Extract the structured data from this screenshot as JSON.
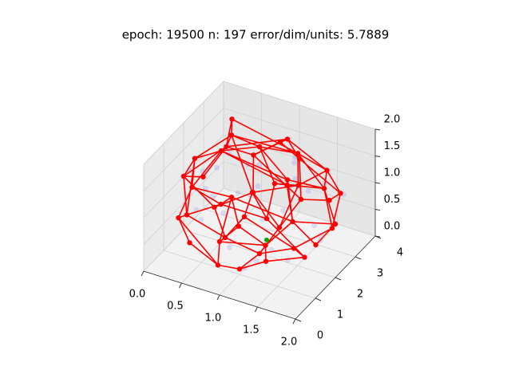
{
  "chart_data": {
    "type": "network3d",
    "title": "epoch: 19500 n: 197 error/dim/units: 5.7889",
    "xlim": [
      0,
      2
    ],
    "ylim": [
      0,
      4
    ],
    "zlim": [
      0,
      2
    ],
    "xticks": [
      {
        "value": 0,
        "label": "0.0"
      },
      0.5,
      {
        "value": 1,
        "label": "1.0"
      },
      1.5,
      {
        "value": 2,
        "label": "2.0"
      }
    ],
    "yticks": [
      0,
      1,
      2,
      3,
      4
    ],
    "zticks": [
      {
        "value": 0,
        "label": "0.0"
      },
      0.5,
      {
        "value": 1,
        "label": "1.0"
      },
      1.5,
      {
        "value": 2,
        "label": "2.0"
      }
    ],
    "grid": true,
    "samples": {
      "color": "#0000ff",
      "x": [
        0.9,
        1.3,
        0.5,
        1.6,
        0.2,
        1.8,
        0.7,
        1.1,
        0.4,
        1.5,
        0.3,
        1.7,
        0.6,
        1.2,
        0.8,
        1.4,
        0.1,
        1.9,
        1.0,
        0.5,
        1.3,
        0.7,
        1.6,
        0.9,
        0.4,
        1.1,
        0.2,
        1.8,
        1.0,
        0.6
      ],
      "y": [
        1.8,
        2.6,
        1.2,
        3.0,
        2.2,
        1.7,
        0.8,
        3.4,
        2.7,
        0.7,
        1.5,
        2.4,
        3.5,
        1.1,
        2.9,
        1.9,
        1.9,
        2.8,
        0.5,
        2.1,
        3.3,
        1.6,
        0.9,
        2.3,
        3.2,
        0.9,
        2.9,
        2.0,
        3.8,
        0.6
      ],
      "z": [
        1.7,
        1.6,
        1.3,
        1.2,
        1.1,
        1.0,
        1.4,
        1.3,
        1.5,
        0.8,
        0.7,
        0.5,
        0.9,
        0.3,
        0.2,
        0.1,
        1.2,
        1.2,
        0.7,
        0.5,
        0.8,
        1.9,
        1.5,
        1.1,
        0.4,
        0.2,
        0.9,
        0.6,
        0.7,
        1.0
      ]
    },
    "units": {
      "color": "#ff0000",
      "x": [
        1.0,
        0.6,
        1.4,
        0.5,
        1.5,
        0.2,
        1.8,
        1.0,
        1.0,
        0.4,
        1.6,
        0.3,
        1.7,
        0.0,
        2.0,
        1.0,
        1.0,
        0.3,
        1.7,
        0.5,
        1.5,
        0.7,
        1.3,
        0.8,
        1.2,
        0.2,
        1.8,
        0.6,
        1.4,
        0.9,
        1.1,
        0.3,
        1.7,
        0.6,
        1.4,
        1.0,
        1.0,
        1.0,
        0.1,
        1.9,
        0.8,
        1.2,
        0.5,
        1.5,
        1.2,
        0.8,
        0.4,
        1.6
      ],
      "y": [
        2.0,
        1.6,
        2.4,
        2.5,
        1.5,
        1.8,
        2.2,
        0.6,
        3.4,
        0.9,
        3.1,
        3.0,
        1.0,
        2.0,
        2.0,
        0.0,
        4.0,
        0.6,
        3.4,
        3.6,
        0.4,
        1.2,
        2.8,
        2.4,
        1.6,
        1.4,
        2.6,
        3.2,
        0.8,
        0.3,
        3.7,
        2.4,
        1.6,
        1.8,
        2.2,
        1.0,
        3.0,
        2.0,
        2.6,
        1.4,
        3.8,
        0.2,
        0.4,
        3.6,
        2.0,
        2.0,
        2.9,
        1.1
      ],
      "z": [
        2.0,
        1.9,
        1.9,
        1.8,
        1.8,
        1.5,
        1.5,
        1.6,
        1.6,
        1.4,
        1.4,
        1.3,
        1.3,
        1.0,
        1.0,
        1.0,
        1.0,
        0.9,
        0.9,
        1.0,
        1.0,
        1.1,
        1.1,
        0.9,
        0.9,
        0.6,
        0.6,
        0.5,
        0.5,
        0.4,
        0.4,
        0.4,
        0.4,
        0.2,
        0.2,
        0.1,
        0.1,
        0.0,
        0.8,
        0.8,
        1.3,
        1.3,
        0.6,
        0.6,
        1.4,
        0.6,
        1.9,
        1.9
      ]
    },
    "edges": [
      [
        0,
        1
      ],
      [
        0,
        2
      ],
      [
        0,
        3
      ],
      [
        0,
        4
      ],
      [
        0,
        44
      ],
      [
        1,
        4
      ],
      [
        1,
        5
      ],
      [
        1,
        9
      ],
      [
        1,
        47
      ],
      [
        2,
        3
      ],
      [
        2,
        6
      ],
      [
        2,
        10
      ],
      [
        2,
        46
      ],
      [
        3,
        5
      ],
      [
        3,
        11
      ],
      [
        3,
        46
      ],
      [
        4,
        12
      ],
      [
        4,
        47
      ],
      [
        4,
        6
      ],
      [
        5,
        13
      ],
      [
        5,
        9
      ],
      [
        5,
        25
      ],
      [
        6,
        14
      ],
      [
        6,
        10
      ],
      [
        6,
        26
      ],
      [
        7,
        9
      ],
      [
        7,
        12
      ],
      [
        7,
        15
      ],
      [
        7,
        21
      ],
      [
        7,
        41
      ],
      [
        8,
        10
      ],
      [
        8,
        11
      ],
      [
        8,
        16
      ],
      [
        8,
        19
      ],
      [
        8,
        40
      ],
      [
        9,
        17
      ],
      [
        9,
        21
      ],
      [
        10,
        18
      ],
      [
        10,
        22
      ],
      [
        11,
        19
      ],
      [
        11,
        13
      ],
      [
        11,
        38
      ],
      [
        12,
        20
      ],
      [
        12,
        14
      ],
      [
        12,
        39
      ],
      [
        13,
        25
      ],
      [
        13,
        38
      ],
      [
        13,
        31
      ],
      [
        14,
        26
      ],
      [
        14,
        39
      ],
      [
        15,
        20
      ],
      [
        15,
        29
      ],
      [
        15,
        41
      ],
      [
        16,
        18
      ],
      [
        16,
        30
      ],
      [
        16,
        40
      ],
      [
        17,
        25
      ],
      [
        17,
        42
      ],
      [
        18,
        26
      ],
      [
        18,
        43
      ],
      [
        19,
        27
      ],
      [
        19,
        40
      ],
      [
        20,
        28
      ],
      [
        20,
        41
      ],
      [
        21,
        24
      ],
      [
        21,
        25
      ],
      [
        22,
        23
      ],
      [
        22,
        44
      ],
      [
        22,
        36
      ],
      [
        23,
        45
      ],
      [
        23,
        24
      ],
      [
        24,
        44
      ],
      [
        24,
        32
      ],
      [
        25,
        33
      ],
      [
        26,
        34
      ],
      [
        27,
        31
      ],
      [
        27,
        36
      ],
      [
        28,
        35
      ],
      [
        28,
        32
      ],
      [
        29,
        35
      ],
      [
        29,
        42
      ],
      [
        30,
        36
      ],
      [
        30,
        43
      ],
      [
        31,
        33
      ],
      [
        32,
        34
      ],
      [
        33,
        37
      ],
      [
        34,
        37
      ],
      [
        35,
        37
      ],
      [
        36,
        37
      ],
      [
        45,
        33
      ],
      [
        45,
        34
      ],
      [
        46,
        11
      ],
      [
        47,
        12
      ],
      [
        3,
        23
      ],
      [
        2,
        22
      ],
      [
        6,
        44
      ],
      [
        19,
        30
      ],
      [
        17,
        29
      ]
    ],
    "winner": {
      "color": "#00aa00",
      "x": 1.2,
      "y": 1.6,
      "z": 0.5
    }
  }
}
